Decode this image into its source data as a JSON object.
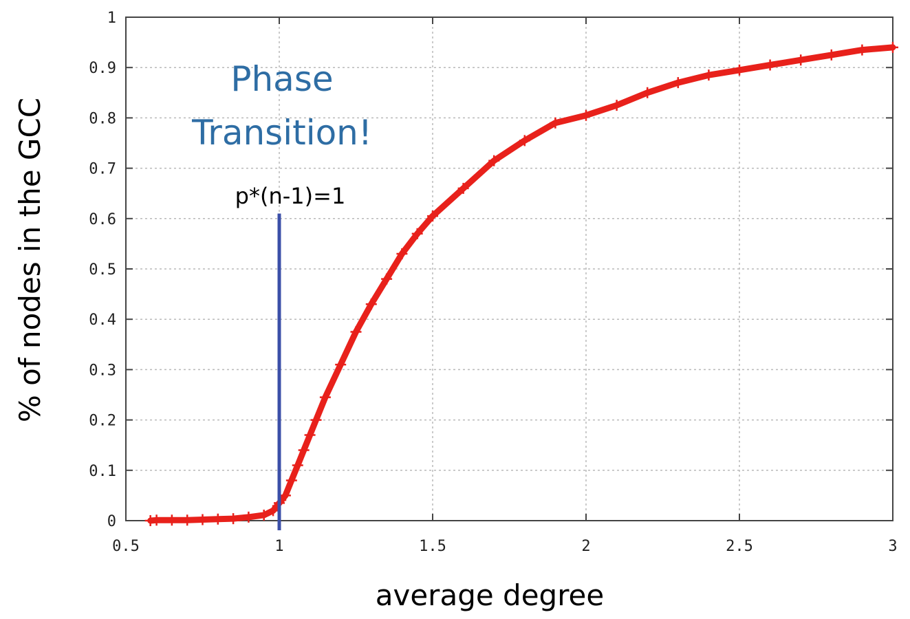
{
  "chart_data": {
    "type": "scatter",
    "xlabel": "average degree",
    "ylabel": "% of nodes in the GCC",
    "xlim": [
      0.5,
      3
    ],
    "ylim": [
      0,
      1
    ],
    "xticks": [
      "0.5",
      "1",
      "1.5",
      "2",
      "2.5",
      "3"
    ],
    "yticks": [
      "0",
      "0.1",
      "0.2",
      "0.3",
      "0.4",
      "0.5",
      "0.6",
      "0.7",
      "0.8",
      "0.9",
      "1"
    ],
    "grid": true,
    "marker": "+",
    "series_color": "#e8211b",
    "series": [
      {
        "x": [
          0.58,
          0.6,
          0.65,
          0.7,
          0.75,
          0.8,
          0.85,
          0.9,
          0.95,
          0.98,
          1.0,
          1.02,
          1.04,
          1.06,
          1.08,
          1.1,
          1.12,
          1.15,
          1.2,
          1.25,
          1.3,
          1.35,
          1.4,
          1.45,
          1.5,
          1.6,
          1.7,
          1.8,
          1.9,
          2.0,
          2.1,
          2.2,
          2.3,
          2.4,
          2.5,
          2.6,
          2.7,
          2.8,
          2.9,
          3.0
        ],
        "y": [
          0.0,
          0.001,
          0.001,
          0.001,
          0.002,
          0.003,
          0.004,
          0.007,
          0.011,
          0.02,
          0.035,
          0.05,
          0.08,
          0.11,
          0.14,
          0.17,
          0.2,
          0.245,
          0.31,
          0.375,
          0.43,
          0.48,
          0.53,
          0.57,
          0.605,
          0.66,
          0.715,
          0.755,
          0.79,
          0.805,
          0.825,
          0.85,
          0.87,
          0.885,
          0.895,
          0.905,
          0.915,
          0.925,
          0.935,
          0.94
        ]
      }
    ],
    "threshold_line": {
      "x": 1,
      "y_top": 0.61,
      "color": "#3b4fa8"
    },
    "annotations": {
      "phase": "Phase",
      "transition": "Transition!",
      "formula": "p*(n-1)=1"
    }
  }
}
